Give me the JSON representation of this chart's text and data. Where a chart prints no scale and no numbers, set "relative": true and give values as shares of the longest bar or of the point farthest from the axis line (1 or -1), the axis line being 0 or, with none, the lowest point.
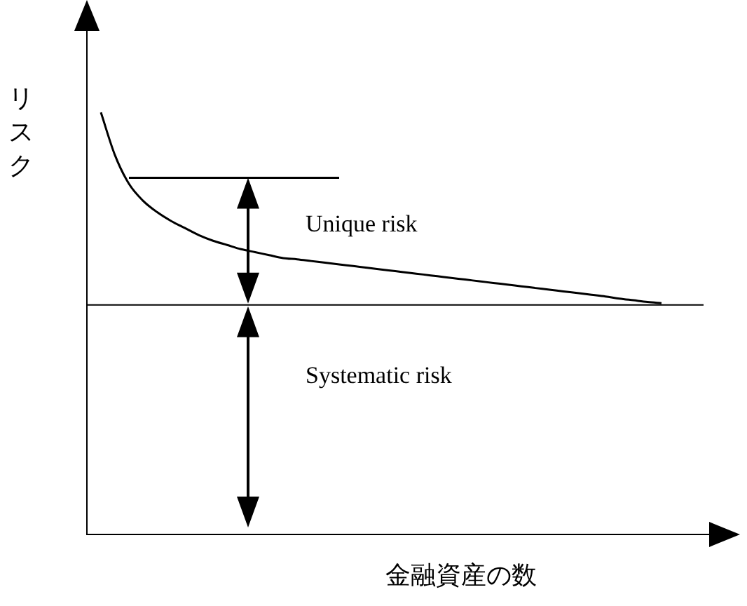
{
  "chart_data": {
    "type": "line",
    "relative": true,
    "xlabel": "金融資産の数",
    "ylabel": "リスク",
    "categories": [
      null,
      null,
      null,
      null,
      null,
      null,
      null,
      null,
      null,
      null,
      null,
      null,
      null,
      null,
      null,
      null,
      null,
      null,
      null,
      null,
      null,
      null,
      null,
      null,
      null,
      null,
      null,
      null,
      null,
      null,
      null,
      null,
      null,
      null,
      null,
      null,
      null,
      null,
      null,
      null,
      null,
      null,
      null,
      null,
      null
    ],
    "series": [
      {
        "color": "#000000",
        "values": [
          null,
          1,
          0.899,
          0.831,
          0.791,
          0.764,
          0.743,
          0.726,
          0.709,
          0.696,
          0.686,
          0.676,
          0.669,
          0.662,
          0.655,
          0.652,
          0.648,
          0.644,
          0.64,
          0.636,
          0.632,
          0.628,
          0.624,
          0.62,
          0.616,
          0.612,
          0.608,
          0.604,
          0.6,
          0.596,
          0.592,
          0.588,
          0.584,
          0.58,
          0.576,
          0.572,
          0.568,
          0.564,
          0.559,
          0.555,
          0.551,
          0.548,
          null,
          null,
          null
        ]
      },
      {
        "color": "#000000",
        "values": [
          null,
          null,
          null,
          0.845,
          0.845,
          0.845,
          0.845,
          0.845,
          0.845,
          0.845,
          0.845,
          0.845,
          0.845,
          0.845,
          0.845,
          0.845,
          0.845,
          0.845,
          0.845,
          null,
          null,
          null,
          null,
          null,
          null,
          null,
          null,
          null,
          null,
          null,
          null,
          null,
          null,
          null,
          null,
          null,
          null,
          null,
          null,
          null,
          null,
          null,
          null,
          null,
          null
        ]
      }
    ],
    "ref_lines": [
      {
        "axis": "y",
        "value": 0.544,
        "color": "#000000"
      }
    ],
    "annotations": [
      "Unique risk",
      "Systematic risk"
    ],
    "legend": false,
    "grid": false,
    "marker": "none",
    "line_style": "solid"
  }
}
